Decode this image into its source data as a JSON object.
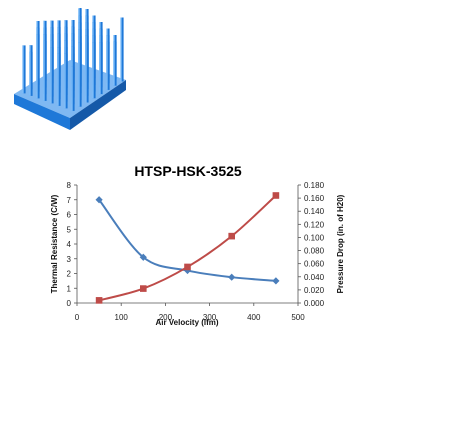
{
  "chart_data": {
    "type": "line",
    "title": "HTSP-HSK-3525",
    "xlabel": "Air Velocity (lfm)",
    "ylabel_left": "Thermal Resistance (C/W)",
    "ylabel_right": "Pressure Drop (in. of H20)",
    "xlim": [
      0,
      500
    ],
    "ylim_left": [
      0,
      8
    ],
    "ylim_right": [
      0,
      0.18
    ],
    "x_ticks": [
      "0",
      "100",
      "200",
      "300",
      "400",
      "500"
    ],
    "y_left_ticks": [
      "0",
      "1",
      "2",
      "3",
      "4",
      "5",
      "6",
      "7",
      "8"
    ],
    "y_right_ticks": [
      "0.000",
      "0.020",
      "0.040",
      "0.060",
      "0.080",
      "0.100",
      "0.120",
      "0.140",
      "0.160",
      "0.180"
    ],
    "grid": false,
    "legend": "none",
    "series": [
      {
        "axis": "left",
        "marker": "diamond",
        "color": "#4a7ebb",
        "x": [
          50,
          150,
          250,
          350,
          450
        ],
        "values": [
          7.0,
          3.1,
          2.2,
          1.75,
          1.5
        ]
      },
      {
        "axis": "right",
        "marker": "square",
        "color": "#be4b48",
        "x": [
          50,
          150,
          250,
          350,
          450
        ],
        "values": [
          0.004,
          0.022,
          0.055,
          0.102,
          0.164
        ]
      }
    ]
  },
  "image": {
    "icon": "pin-fin-heatsink-icon",
    "colors": [
      "#1e78d8",
      "#8cc8ff"
    ]
  }
}
